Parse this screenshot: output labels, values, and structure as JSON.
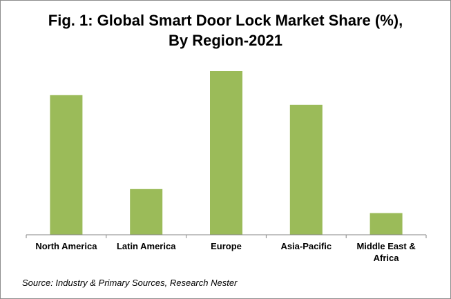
{
  "chart_data": {
    "type": "bar",
    "title_lines": [
      "Fig. 1: Global Smart Door Lock Market Share (%),",
      "By Region-2021"
    ],
    "categories": [
      "North America",
      "Latin America",
      "Europe",
      "Asia-Pacific",
      "Middle East & Africa"
    ],
    "category_lines": [
      [
        "North America"
      ],
      [
        "Latin America"
      ],
      [
        "Europe"
      ],
      [
        "Asia-Pacific"
      ],
      [
        "Middle East &",
        "Africa"
      ]
    ],
    "values": [
      29,
      9.5,
      34,
      27,
      4.5
    ],
    "ylim": [
      0,
      35
    ],
    "xlabel": "",
    "ylabel": "",
    "grid": false,
    "legend": "none",
    "bar_color": "#9bbb59",
    "axis_color": "#868686"
  },
  "source": "Source: Industry & Primary Sources, Research Nester"
}
